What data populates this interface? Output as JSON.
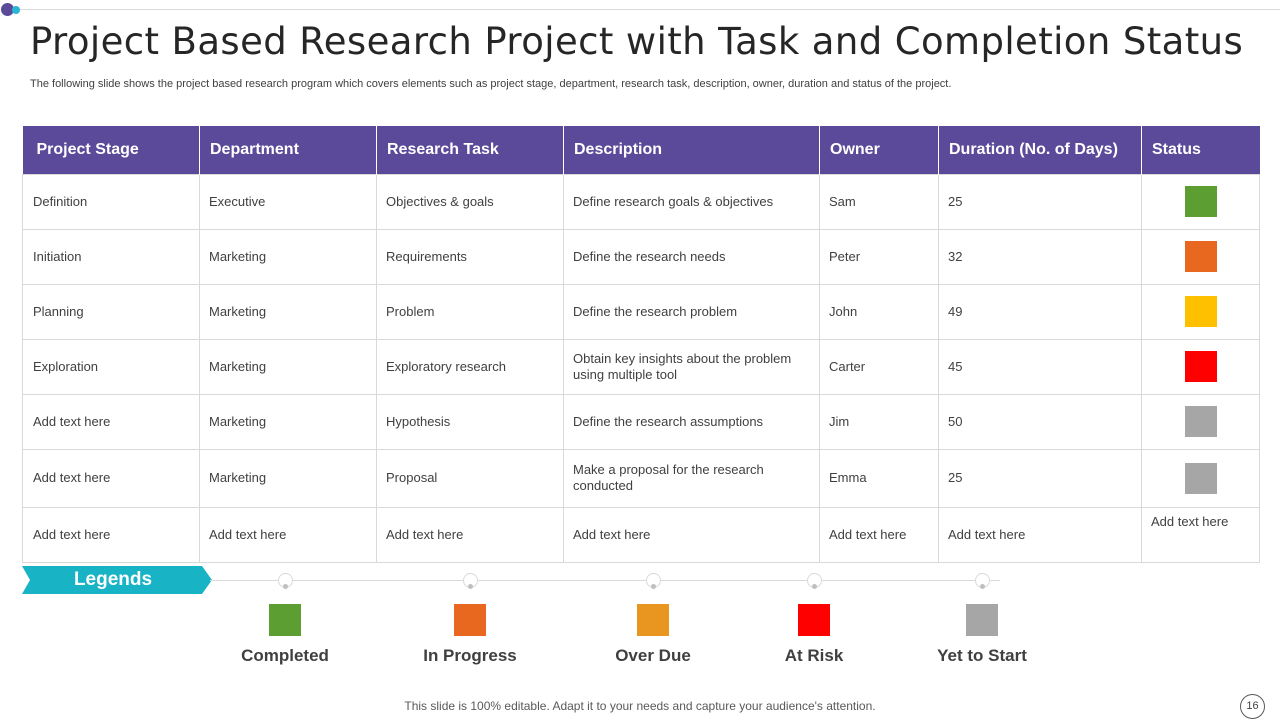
{
  "title": "Project Based Research Project with Task and Completion Status",
  "subtitle": "The following slide shows the project based research program which covers elements such as project stage, department, research task, description, owner, duration and status of the project.",
  "table": {
    "headers": [
      "Project Stage",
      "Department",
      "Research Task",
      "Description",
      "Owner",
      "Duration (No. of Days)",
      "Status"
    ],
    "rows": [
      {
        "stage": "Definition",
        "department": "Executive",
        "task": "Objectives & goals",
        "description": "Define research goals & objectives",
        "owner": "Sam",
        "duration": "25",
        "status_color": "#5c9e31"
      },
      {
        "stage": "Initiation",
        "department": "Marketing",
        "task": "Requirements",
        "description": "Define the research needs",
        "owner": "Peter",
        "duration": "32",
        "status_color": "#e8681f"
      },
      {
        "stage": "Planning",
        "department": "Marketing",
        "task": "Problem",
        "description": "Define the research problem",
        "owner": "John",
        "duration": "49",
        "status_color": "#ffc000"
      },
      {
        "stage": "Exploration",
        "department": "Marketing",
        "task": "Exploratory research",
        "description": "Obtain key insights about the problem using multiple tool",
        "owner": "Carter",
        "duration": "45",
        "status_color": "#ff0000"
      },
      {
        "stage": "Add text here",
        "department": "Marketing",
        "task": "Hypothesis",
        "description": "Define the research assumptions",
        "owner": "Jim",
        "duration": "50",
        "status_color": "#a6a6a6"
      },
      {
        "stage": "Add text here",
        "department": "Marketing",
        "task": "Proposal",
        "description": "Make a proposal for the research conducted",
        "owner": "Emma",
        "duration": "25",
        "status_color": "#a6a6a6"
      },
      {
        "stage": "Add text here",
        "department": "Add text here",
        "task": "Add text here",
        "description": "Add text here",
        "owner": "Add text here",
        "duration": "Add text here",
        "status_text": "Add text here"
      }
    ]
  },
  "legend": {
    "title": "Legends",
    "items": [
      {
        "label": "Completed",
        "color": "#5c9e31"
      },
      {
        "label": "In Progress",
        "color": "#e8681f"
      },
      {
        "label": "Over Due",
        "color": "#e8961f"
      },
      {
        "label": "At Risk",
        "color": "#ff0000"
      },
      {
        "label": "Yet to Start",
        "color": "#a6a6a6"
      }
    ]
  },
  "footer": "This slide is 100% editable. Adapt it to your needs and capture your audience's attention.",
  "page_number": "16"
}
